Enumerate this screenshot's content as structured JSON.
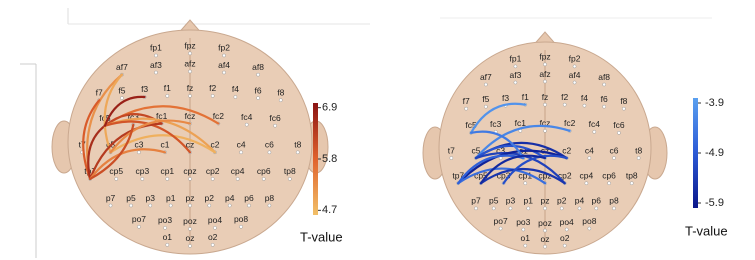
{
  "electrodes": [
    "fp1",
    "fpz",
    "fp2",
    "af7",
    "af3",
    "afz",
    "af4",
    "af8",
    "f7",
    "f5",
    "f3",
    "f1",
    "fz",
    "f2",
    "f4",
    "f6",
    "f8",
    "fc5",
    "fc3",
    "fc1",
    "fcz",
    "fc2",
    "fc4",
    "fc6",
    "t7",
    "c5",
    "c3",
    "c1",
    "cz",
    "c2",
    "c4",
    "c6",
    "t8",
    "tp7",
    "cp5",
    "cp3",
    "cp1",
    "cpz",
    "cp2",
    "cp4",
    "cp6",
    "tp8",
    "p7",
    "p5",
    "p3",
    "p1",
    "pz",
    "p2",
    "p4",
    "p6",
    "p8",
    "po7",
    "po3",
    "poz",
    "po4",
    "po8",
    "o1",
    "oz",
    "o2"
  ],
  "panels": [
    {
      "colorbar": {
        "label": "T-value",
        "lim": [
          4.6,
          7.0
        ],
        "ticks": [
          6.9,
          5.8,
          4.7
        ],
        "colors": [
          "#f2c068",
          "#e0622c",
          "#8b1414"
        ]
      },
      "connections": [
        {
          "from": "af7",
          "to": "tp7",
          "value": 5.2
        },
        {
          "from": "f7",
          "to": "tp7",
          "value": 5.9
        },
        {
          "from": "fc5",
          "to": "tp7",
          "value": 6.6
        },
        {
          "from": "af7",
          "to": "c5",
          "value": 4.9
        },
        {
          "from": "fc5",
          "to": "fc2",
          "value": 5.6
        },
        {
          "from": "fc5",
          "to": "fc1",
          "value": 6.2
        },
        {
          "from": "fc5",
          "to": "c2",
          "value": 5.0
        },
        {
          "from": "c5",
          "to": "c2",
          "value": 4.8
        },
        {
          "from": "fc5",
          "to": "cz",
          "value": 6.0
        },
        {
          "from": "tp7",
          "to": "fc1",
          "value": 6.4
        },
        {
          "from": "tp7",
          "to": "c1",
          "value": 5.4
        },
        {
          "from": "fc5",
          "to": "f3",
          "value": 6.8
        },
        {
          "from": "c5",
          "to": "fcz",
          "value": 5.3
        },
        {
          "from": "tp7",
          "to": "fc3",
          "value": 6.1
        }
      ]
    },
    {
      "colorbar": {
        "label": "T-value",
        "lim": [
          -6.0,
          -3.8
        ],
        "ticks": [
          -3.9,
          -4.9,
          -5.9
        ],
        "colors": [
          "#0a168a",
          "#2c5ad6",
          "#5aa0f0"
        ]
      },
      "connections": [
        {
          "from": "fc5",
          "to": "f1",
          "value": -4.0
        },
        {
          "from": "c5",
          "to": "fc2",
          "value": -4.2
        },
        {
          "from": "c5",
          "to": "c2",
          "value": -5.6
        },
        {
          "from": "c5",
          "to": "cz",
          "value": -5.0
        },
        {
          "from": "c5",
          "to": "cp2",
          "value": -5.3
        },
        {
          "from": "tp7",
          "to": "c2",
          "value": -5.8
        },
        {
          "from": "tp7",
          "to": "cpz",
          "value": -4.6
        },
        {
          "from": "cp5",
          "to": "cp2",
          "value": -5.5
        },
        {
          "from": "tp7",
          "to": "c1",
          "value": -4.8
        },
        {
          "from": "cp3",
          "to": "c2",
          "value": -5.1
        },
        {
          "from": "fc5",
          "to": "c1",
          "value": -4.4
        },
        {
          "from": "cp5",
          "to": "cz",
          "value": -5.7
        }
      ]
    }
  ]
}
